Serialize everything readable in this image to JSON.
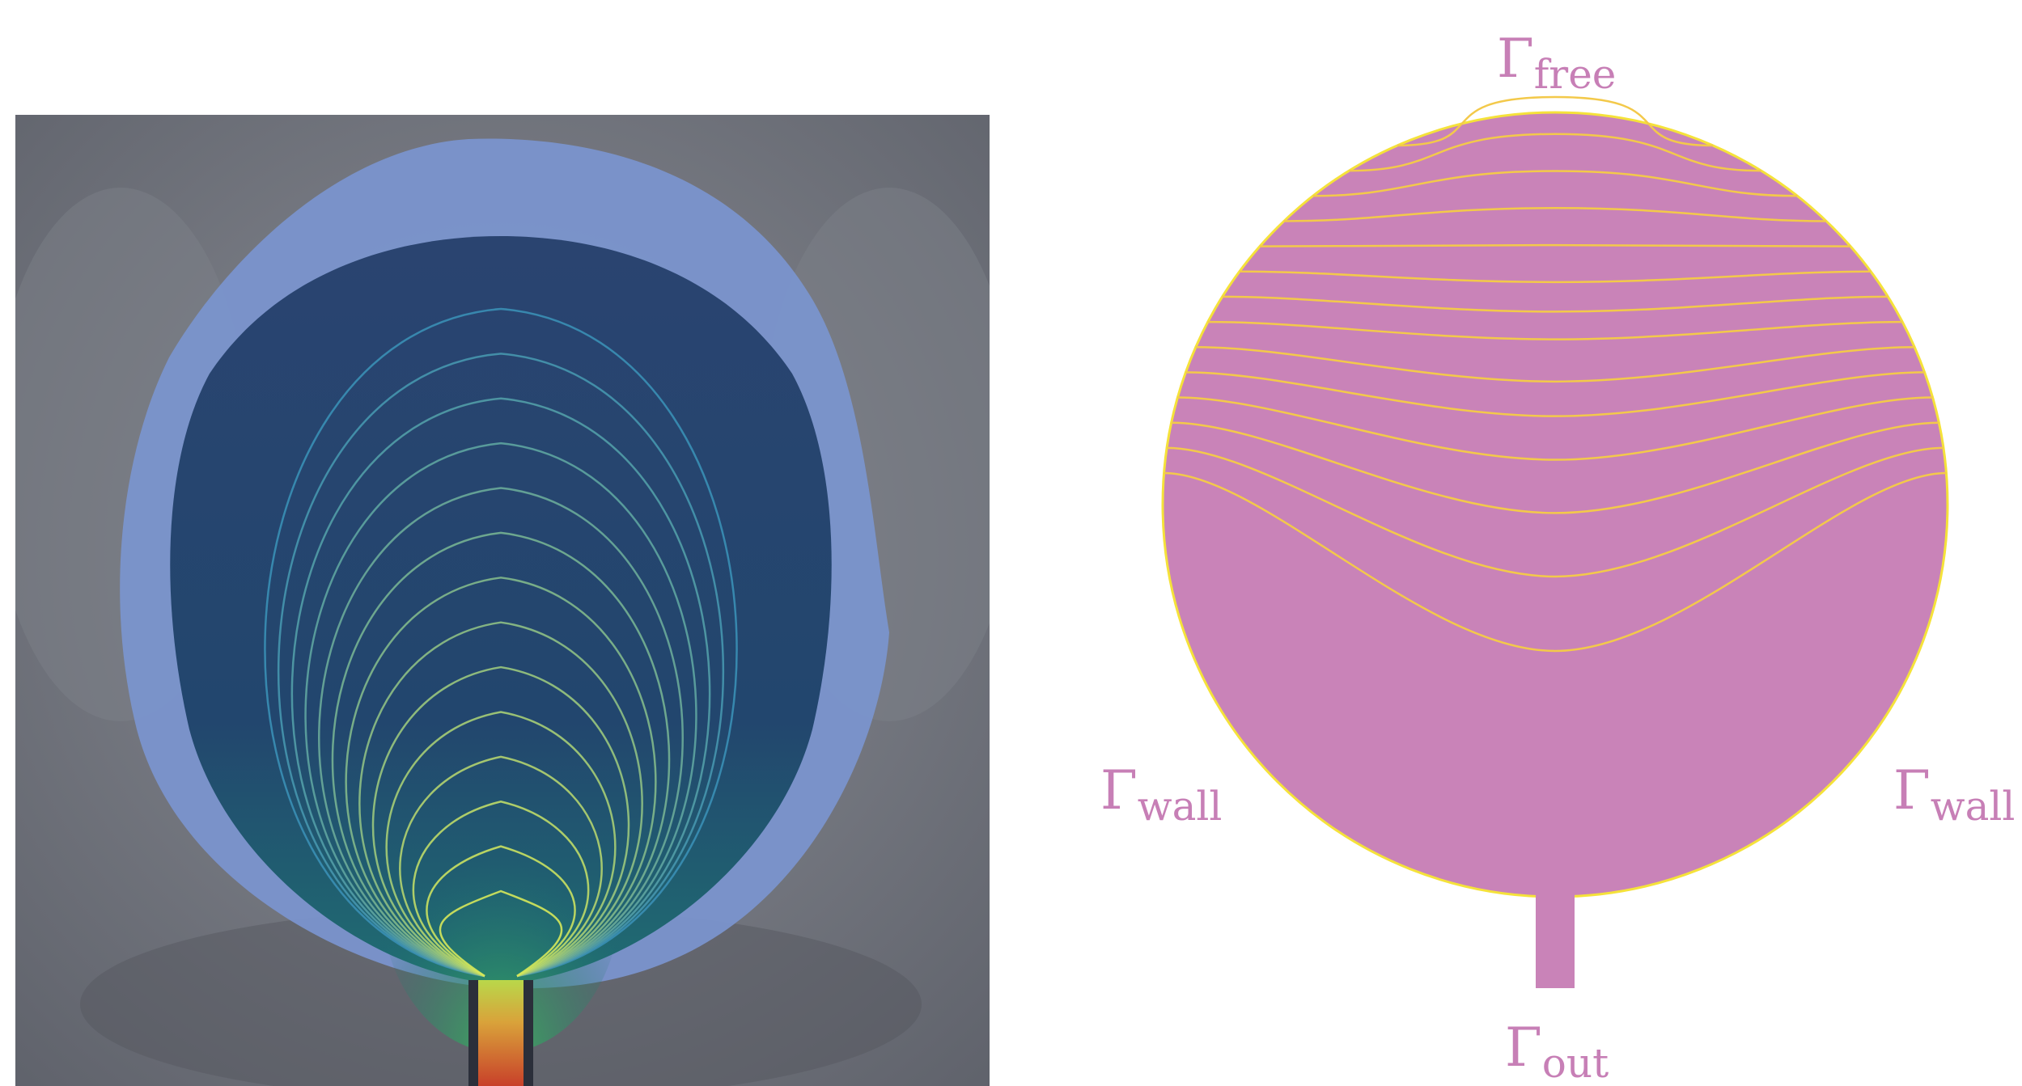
{
  "left_figure": {
    "description_tag": "simulation-overlay",
    "colors": {
      "background": "#6a6d76",
      "outer_region": "#7b95cf",
      "inner_region": "#27426f",
      "lines_top": "#3a8fb5",
      "lines_bottom": "#d6e85a",
      "outlet_hot": "#c8402a"
    },
    "contour_count": 14
  },
  "right_figure": {
    "colors": {
      "domain_fill": "#c983b8",
      "contour": "#f3c94a",
      "outline": "#f5e23a",
      "label": "#c77fb6"
    },
    "contour_count": 14,
    "labels": {
      "top": {
        "base": "Γ",
        "sub": "free"
      },
      "left": {
        "base": "Γ",
        "sub": "wall"
      },
      "right": {
        "base": "Γ",
        "sub": "wall"
      },
      "bottom": {
        "base": "Γ",
        "sub": "out"
      }
    }
  }
}
